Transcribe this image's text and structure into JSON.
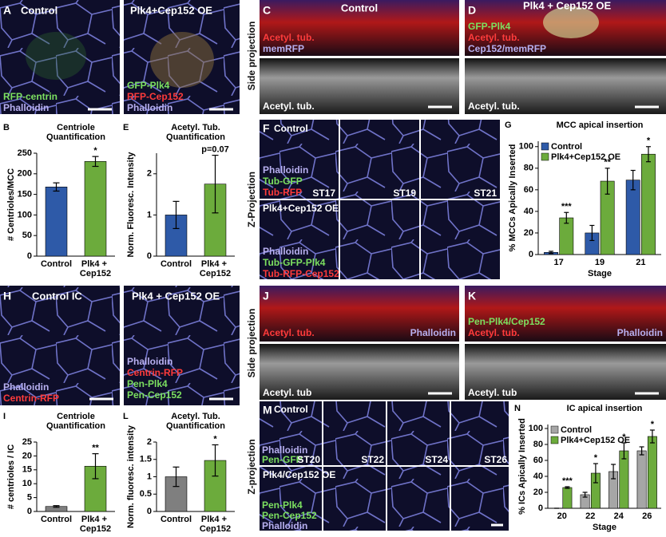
{
  "panels": {
    "A": {
      "letter": "A",
      "control": {
        "title": "Control",
        "labels": [
          "RFP-centrin",
          "Phalloidin"
        ]
      },
      "oe": {
        "title": "Plk4+Cep152 OE",
        "labels": [
          "GFP-Plk4",
          "RFP-Cep152",
          "Phalloidin"
        ]
      }
    },
    "C": {
      "letter": "C",
      "title": "Control",
      "labels": [
        "Acetyl. tub.",
        "memRFP"
      ],
      "bottom_label": "Acetyl. tub."
    },
    "D": {
      "letter": "D",
      "title": "Plk4 + Cep152 OE",
      "labels": [
        "GFP-Plk4",
        "Acetyl. tub.",
        "Cep152/memRFP"
      ],
      "bottom_label": "Acetyl. tub."
    },
    "side_label_top": "Side projection",
    "F": {
      "letter": "F",
      "control": {
        "title": "Control",
        "labels": [
          "Phalloidin",
          "Tub-GFP",
          "Tub-RFP"
        ]
      },
      "stages": [
        "ST17",
        "ST19",
        "ST21"
      ],
      "oe": {
        "title": "Plk4+Cep152 OE",
        "labels": [
          "Phalloidin",
          "Tub-GFP-Plk4",
          "Tub-RFP-Cep152"
        ]
      }
    },
    "z_label_top": "Z-Projection",
    "H": {
      "letter": "H",
      "control": {
        "title": "Control IC",
        "labels": [
          "Phalloidin",
          "Centrin-RFP"
        ]
      },
      "oe": {
        "title": "Plk4 + Cep152 OE",
        "labels": [
          "Phalloidin",
          "Centrin-RFP",
          "Pen-Plk4",
          "Pen-Cep152"
        ]
      }
    },
    "J": {
      "letter": "J",
      "labels": [
        "Acetyl. tub.",
        "Phalloidin"
      ],
      "bottom_label": "Acetyl. tub"
    },
    "K": {
      "letter": "K",
      "labels": [
        "Pen-Plk4/Cep152",
        "Acetyl. tub.",
        "Phalloidin"
      ],
      "bottom_label": "Acetyl. tub"
    },
    "side_label_bottom": "Side projection",
    "M": {
      "letter": "M",
      "control": {
        "title": "Control",
        "labels": [
          "Phalloidin",
          "Pen-GFP"
        ]
      },
      "stages": [
        "ST20",
        "ST22",
        "ST24",
        "ST26"
      ],
      "oe": {
        "title": "Plk4/Cep152 OE",
        "labels": [
          "Pen-Plk4",
          "Pen-Cep152",
          "Phalloidin"
        ]
      }
    },
    "z_label_bottom": "Z-projection"
  },
  "chart_data": [
    {
      "type": "bar",
      "panel": "B",
      "title": [
        "Centriole",
        "Quantification"
      ],
      "ylabel": "# Centrioles/MCC",
      "categories": [
        "Control",
        "Plk4 + Cep152"
      ],
      "values": [
        168,
        230
      ],
      "errors": [
        10,
        12
      ],
      "colors": [
        "#2e5aa8",
        "#6cab3c"
      ],
      "annotations": [
        null,
        "*"
      ],
      "ylim": [
        0,
        250
      ],
      "yticks": [
        0,
        50,
        100,
        150,
        200,
        250
      ]
    },
    {
      "type": "bar",
      "panel": "E",
      "title": [
        "Acetyl. Tub.",
        "Quantification"
      ],
      "ylabel": "Norm. Fluoresc. Intensity",
      "categories": [
        "Control",
        "Plk4 + Cep152"
      ],
      "values": [
        1.0,
        1.75
      ],
      "errors": [
        0.33,
        0.7
      ],
      "colors": [
        "#2e5aa8",
        "#6cab3c"
      ],
      "annotations": [
        null,
        "p=0.07"
      ],
      "ylim": [
        0,
        2.5
      ],
      "yticks": [
        0,
        1,
        2
      ]
    },
    {
      "type": "grouped-bar",
      "panel": "G",
      "title": "MCC apical insertion",
      "ylabel": "% MCCs Apically Inserted",
      "xlabel": "Stage",
      "categories": [
        "17",
        "19",
        "21"
      ],
      "series": [
        {
          "name": "Control",
          "color": "#2e5aa8",
          "values": [
            2,
            20,
            69
          ],
          "errors": [
            1,
            7,
            9
          ]
        },
        {
          "name": "Plk4+Cep152 OE",
          "color": "#6cab3c",
          "values": [
            34,
            68,
            93
          ],
          "errors": [
            5,
            12,
            7
          ]
        }
      ],
      "annotations": [
        "***",
        "**",
        "*"
      ],
      "ylim": [
        0,
        105
      ],
      "yticks": [
        0,
        20,
        40,
        60,
        80,
        100
      ]
    },
    {
      "type": "bar",
      "panel": "I",
      "title": [
        "Centriole",
        "Quantification"
      ],
      "ylabel": "# centrioles / IC",
      "categories": [
        "Control",
        "Plk4 + Cep152"
      ],
      "values": [
        1.8,
        16.3
      ],
      "errors": [
        0.3,
        4.5
      ],
      "colors": [
        "#7f7f7f",
        "#6cab3c"
      ],
      "annotations": [
        null,
        "**"
      ],
      "ylim": [
        0,
        25
      ],
      "yticks": [
        0,
        5,
        10,
        15,
        20,
        25
      ]
    },
    {
      "type": "bar",
      "panel": "L",
      "title": [
        "Acetyl. Tub.",
        "Quantification"
      ],
      "ylabel": "Norm. fluoresc. intensity",
      "categories": [
        "Control",
        "Plk4 + Cep152"
      ],
      "values": [
        1.0,
        1.47
      ],
      "errors": [
        0.28,
        0.45
      ],
      "colors": [
        "#7f7f7f",
        "#6cab3c"
      ],
      "annotations": [
        null,
        "*"
      ],
      "ylim": [
        0,
        2
      ],
      "yticks": [
        0,
        0.5,
        1,
        1.5,
        2
      ]
    },
    {
      "type": "grouped-bar",
      "panel": "N",
      "title": "IC apical insertion",
      "ylabel": "% ICs Apically Inserted",
      "xlabel": "Stage",
      "categories": [
        "20",
        "22",
        "24",
        "26"
      ],
      "series": [
        {
          "name": "Control",
          "color": "#a6a6a6",
          "values": [
            0,
            17,
            46,
            72
          ],
          "errors": [
            0,
            3,
            9,
            5
          ]
        },
        {
          "name": "Plk4+Cep152 OE",
          "color": "#6cab3c",
          "values": [
            26,
            44,
            72,
            90
          ],
          "errors": [
            1,
            12,
            10,
            8
          ]
        }
      ],
      "annotations": [
        "***",
        "*",
        "*",
        "*"
      ],
      "ylim": [
        0,
        105
      ],
      "yticks": [
        0,
        20,
        40,
        60,
        80,
        100
      ]
    }
  ]
}
